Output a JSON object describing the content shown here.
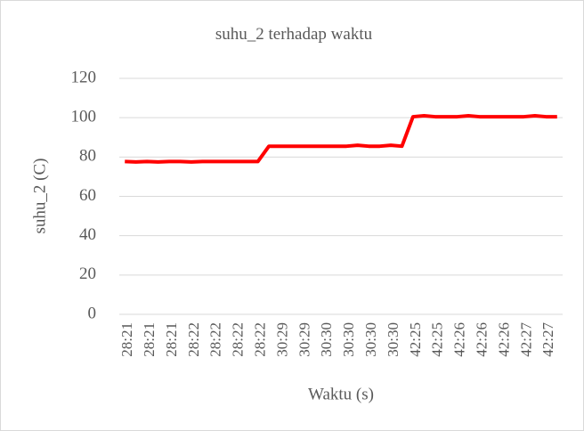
{
  "chart_data": {
    "type": "line",
    "title": "suhu_2 terhadap waktu",
    "x_label": "Waktu (s)",
    "y_label": "suhu_2 (C)",
    "categories": [
      "28:21",
      null,
      "28:21",
      null,
      "28:21",
      null,
      "28:22",
      null,
      "28:22",
      null,
      "28:22",
      null,
      "28:22",
      null,
      "30:29",
      null,
      "30:29",
      null,
      "30:30",
      null,
      "30:30",
      null,
      "30:30",
      null,
      "30:30",
      null,
      "42:25",
      null,
      "42:25",
      null,
      "42:26",
      null,
      "42:26",
      null,
      "42:26",
      null,
      "42:27",
      null,
      "42:27",
      null
    ],
    "series": [
      {
        "name": "suhu_2",
        "color": "#ff0000",
        "values": [
          77.7,
          77.5,
          77.7,
          77.5,
          77.7,
          77.7,
          77.5,
          77.7,
          77.7,
          77.7,
          77.7,
          77.7,
          77.7,
          85.5,
          85.5,
          85.5,
          85.5,
          85.5,
          85.5,
          85.5,
          85.5,
          86,
          85.5,
          85.5,
          86,
          85.5,
          100.5,
          101,
          100.5,
          100.5,
          100.5,
          101,
          100.5,
          100.5,
          100.5,
          100.5,
          100.5,
          101,
          100.5,
          100.5
        ]
      }
    ],
    "ylim": [
      0,
      120
    ],
    "yticks": [
      0,
      20,
      40,
      60,
      80,
      100,
      120
    ],
    "grid": true
  }
}
